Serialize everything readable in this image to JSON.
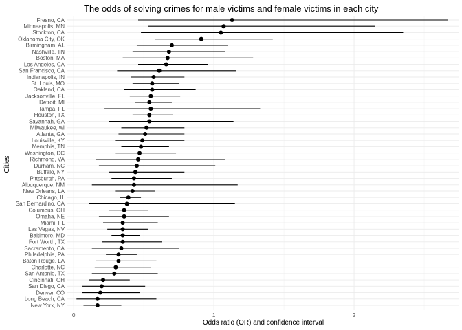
{
  "chart_data": {
    "type": "scatter",
    "title": "The odds of solving crimes for male victims and female victims in each city",
    "xlabel": "Odds ratio (OR) and confidence interval",
    "ylabel": "Cities",
    "xlim": [
      -0.05,
      2.75
    ],
    "xticks": [
      0,
      1,
      2
    ],
    "xtick_labels": [
      "0",
      "1",
      "2"
    ],
    "grid": true,
    "series": [
      {
        "points": [
          {
            "city": "Fresno, CA",
            "or": 1.13,
            "low": 0.46,
            "high": 2.67
          },
          {
            "city": "Minneapolis, MN",
            "or": 1.07,
            "low": 0.53,
            "high": 2.15
          },
          {
            "city": "Stockton, CA",
            "or": 1.05,
            "low": 0.48,
            "high": 2.35
          },
          {
            "city": "Oklahoma City, OK",
            "or": 0.91,
            "low": 0.58,
            "high": 1.42
          },
          {
            "city": "Birmingham, AL",
            "or": 0.7,
            "low": 0.45,
            "high": 1.1
          },
          {
            "city": "Nashville, TN",
            "or": 0.68,
            "low": 0.42,
            "high": 1.08
          },
          {
            "city": "Boston, MA",
            "or": 0.67,
            "low": 0.35,
            "high": 1.28
          },
          {
            "city": "Los Angeles, CA",
            "or": 0.66,
            "low": 0.46,
            "high": 0.96
          },
          {
            "city": "San Francisco, CA",
            "or": 0.61,
            "low": 0.31,
            "high": 1.16
          },
          {
            "city": "Indianapolis, IN",
            "or": 0.57,
            "low": 0.41,
            "high": 0.79
          },
          {
            "city": "St. Louis, MO",
            "or": 0.56,
            "low": 0.42,
            "high": 0.75
          },
          {
            "city": "Oakland, CA",
            "or": 0.56,
            "low": 0.36,
            "high": 0.87
          },
          {
            "city": "Jacksonville, FL",
            "or": 0.55,
            "low": 0.4,
            "high": 0.76
          },
          {
            "city": "Detroit, MI",
            "or": 0.54,
            "low": 0.44,
            "high": 0.7
          },
          {
            "city": "Tampa, FL",
            "or": 0.55,
            "low": 0.22,
            "high": 1.33
          },
          {
            "city": "Houston, TX",
            "or": 0.54,
            "low": 0.42,
            "high": 0.71
          },
          {
            "city": "Savannah, GA",
            "or": 0.54,
            "low": 0.25,
            "high": 1.14
          },
          {
            "city": "Milwaukee, wI",
            "or": 0.52,
            "low": 0.34,
            "high": 0.79
          },
          {
            "city": "Atlanta, GA",
            "or": 0.51,
            "low": 0.32,
            "high": 0.79
          },
          {
            "city": "Louisville, KY",
            "or": 0.49,
            "low": 0.3,
            "high": 0.79
          },
          {
            "city": "Memphis, TN",
            "or": 0.48,
            "low": 0.34,
            "high": 0.68
          },
          {
            "city": "Washington, DC",
            "or": 0.47,
            "low": 0.3,
            "high": 0.73
          },
          {
            "city": "Richmond, VA",
            "or": 0.46,
            "low": 0.16,
            "high": 1.08
          },
          {
            "city": "Durham, NC",
            "or": 0.45,
            "low": 0.18,
            "high": 1.01
          },
          {
            "city": "Buffalo, NY",
            "or": 0.44,
            "low": 0.25,
            "high": 0.79
          },
          {
            "city": "Pittsburgh, PA",
            "or": 0.43,
            "low": 0.27,
            "high": 0.7
          },
          {
            "city": "Albuquerque, NM",
            "or": 0.43,
            "low": 0.13,
            "high": 1.17
          },
          {
            "city": "New Orleans, LA",
            "or": 0.42,
            "low": 0.3,
            "high": 0.58
          },
          {
            "city": "Chicago, IL",
            "or": 0.39,
            "low": 0.33,
            "high": 0.48
          },
          {
            "city": "San Bernardino, CA",
            "or": 0.38,
            "low": 0.11,
            "high": 1.15
          },
          {
            "city": "Columbus, OH",
            "or": 0.36,
            "low": 0.25,
            "high": 0.53
          },
          {
            "city": "Omaha, NE",
            "or": 0.36,
            "low": 0.18,
            "high": 0.68
          },
          {
            "city": "Miami, FL",
            "or": 0.35,
            "low": 0.21,
            "high": 0.6
          },
          {
            "city": "Las Vegas, NV",
            "or": 0.35,
            "low": 0.24,
            "high": 0.53
          },
          {
            "city": "Baltimore, MD",
            "or": 0.35,
            "low": 0.27,
            "high": 0.47
          },
          {
            "city": "Fort Worth, TX",
            "or": 0.35,
            "low": 0.2,
            "high": 0.63
          },
          {
            "city": "Sacramento, CA",
            "or": 0.34,
            "low": 0.13,
            "high": 0.75
          },
          {
            "city": "Philadelphia, PA",
            "or": 0.32,
            "low": 0.23,
            "high": 0.45
          },
          {
            "city": "Baton Rouge, LA",
            "or": 0.32,
            "low": 0.16,
            "high": 0.59
          },
          {
            "city": "Charlotte, NC",
            "or": 0.3,
            "low": 0.15,
            "high": 0.55
          },
          {
            "city": "San Antonio, TX",
            "or": 0.29,
            "low": 0.13,
            "high": 0.6
          },
          {
            "city": "Cincinnati, OH",
            "or": 0.21,
            "low": 0.11,
            "high": 0.4
          },
          {
            "city": "San Diego, CA",
            "or": 0.2,
            "low": 0.06,
            "high": 0.51
          },
          {
            "city": "Denver, CO",
            "or": 0.19,
            "low": 0.06,
            "high": 0.47
          },
          {
            "city": "Long Beach, CA",
            "or": 0.17,
            "low": 0.02,
            "high": 0.59
          },
          {
            "city": "New York, NY",
            "or": 0.17,
            "low": 0.07,
            "high": 0.34
          }
        ]
      }
    ]
  }
}
